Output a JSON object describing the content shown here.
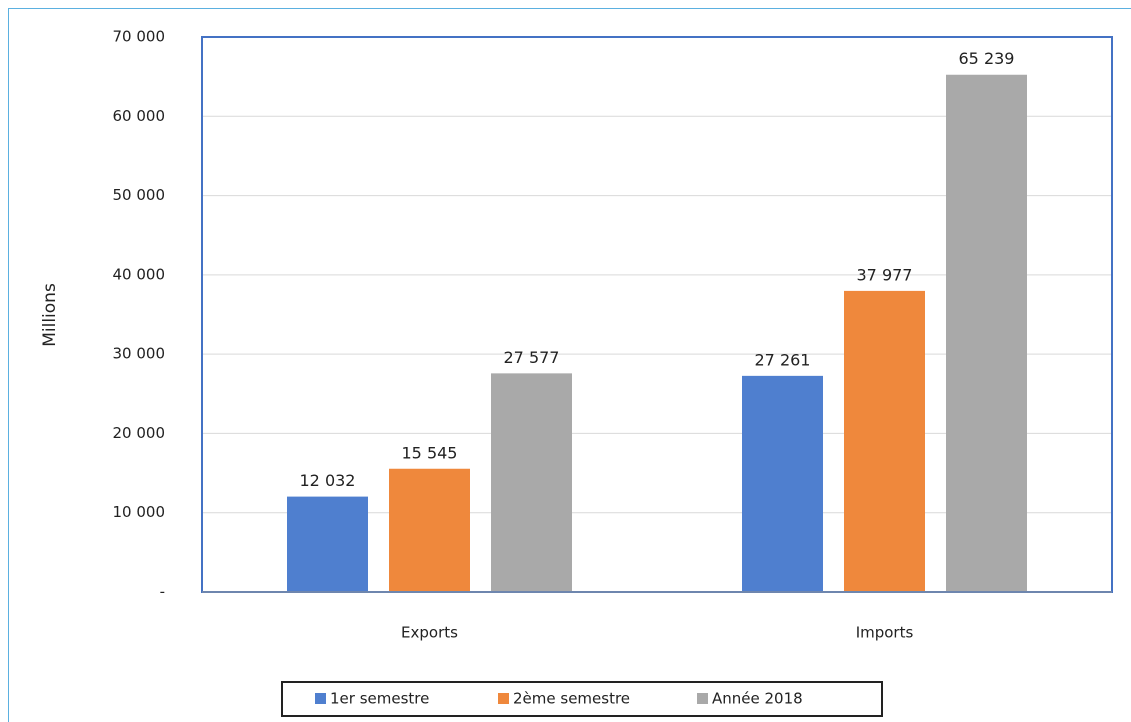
{
  "chart_data": {
    "type": "bar",
    "y_label": "Millions",
    "categories": [
      "Exports",
      "Imports"
    ],
    "series": [
      {
        "name": "1er semestre",
        "color": "#4f7fcf",
        "values": [
          12032,
          27261
        ],
        "value_labels": [
          "12 032",
          "27 261"
        ]
      },
      {
        "name": "2ème semestre",
        "color": "#ef883c",
        "values": [
          15545,
          37977
        ],
        "value_labels": [
          "15 545",
          "37 977"
        ]
      },
      {
        "name": "Année 2018",
        "color": "#a9a9a9",
        "values": [
          27577,
          65239
        ],
        "value_labels": [
          "27 577",
          "65 239"
        ]
      }
    ],
    "ylim": [
      0,
      70000
    ],
    "yticks": [
      {
        "value": 0,
        "label": "-"
      },
      {
        "value": 10000,
        "label": "10 000"
      },
      {
        "value": 20000,
        "label": "20 000"
      },
      {
        "value": 30000,
        "label": "30 000"
      },
      {
        "value": 40000,
        "label": "40 000"
      },
      {
        "value": 50000,
        "label": "50 000"
      },
      {
        "value": 60000,
        "label": "60 000"
      },
      {
        "value": 70000,
        "label": "70 000"
      }
    ],
    "grid": true,
    "legend": "bottom"
  }
}
